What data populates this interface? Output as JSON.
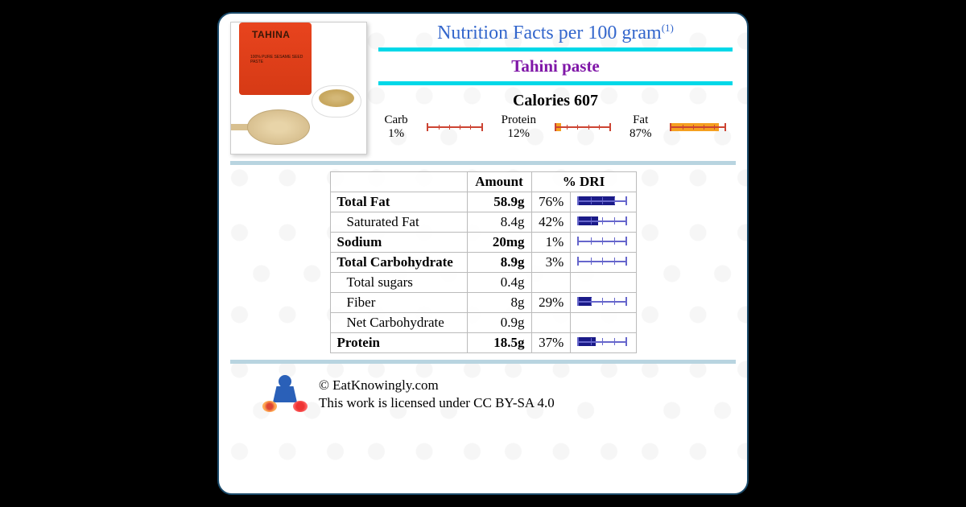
{
  "header": {
    "title_prefix": "Nutrition Facts per 100 gram",
    "title_superscript": "(1)",
    "food_name": "Tahini paste",
    "calories_label": "Calories",
    "calories_value": "607",
    "product_label": "TAHINA",
    "product_sub": "100% PURE SESAME SEED PASTE"
  },
  "macros": [
    {
      "label": "Carb",
      "percent": "1%",
      "fill_pct": 1
    },
    {
      "label": "Protein",
      "percent": "12%",
      "fill_pct": 12
    },
    {
      "label": "Fat",
      "percent": "87%",
      "fill_pct": 87
    }
  ],
  "macro_bar": {
    "scale_color": "#cc4433",
    "fill_color": "#f5a020",
    "tick_positions_pct": [
      20,
      40,
      60,
      80
    ]
  },
  "table": {
    "headers": {
      "amount": "Amount",
      "dri": "% DRI"
    },
    "rows": [
      {
        "label": "Total Fat",
        "bold": true,
        "indent": false,
        "amount": "58.9g",
        "dri": "76%",
        "bar_pct": 76
      },
      {
        "label": "Saturated Fat",
        "bold": false,
        "indent": true,
        "amount": "8.4g",
        "dri": "42%",
        "bar_pct": 42
      },
      {
        "label": "Sodium",
        "bold": true,
        "indent": false,
        "amount": "20mg",
        "dri": "1%",
        "bar_pct": 1
      },
      {
        "label": "Total Carbohydrate",
        "bold": true,
        "indent": false,
        "amount": "8.9g",
        "dri": "3%",
        "bar_pct": 3
      },
      {
        "label": "Total sugars",
        "bold": false,
        "indent": true,
        "amount": "0.4g",
        "dri": "",
        "bar_pct": null
      },
      {
        "label": "Fiber",
        "bold": false,
        "indent": true,
        "amount": "8g",
        "dri": "29%",
        "bar_pct": 29
      },
      {
        "label": "Net Carbohydrate",
        "bold": false,
        "indent": true,
        "amount": "0.9g",
        "dri": "",
        "bar_pct": null
      },
      {
        "label": "Protein",
        "bold": true,
        "indent": false,
        "amount": "18.5g",
        "dri": "37%",
        "bar_pct": 37
      }
    ]
  },
  "dri_bar": {
    "scale_color": "#6666cc",
    "fill_color": "#1a1a88",
    "tick_positions_pct": [
      25,
      50,
      75
    ]
  },
  "footer": {
    "copyright": "© EatKnowingly.com",
    "license": "This work is licensed under CC BY-SA 4.0"
  },
  "colors": {
    "card_border": "#1a4a6a",
    "title": "#3366cc",
    "food_name": "#8017a8",
    "teal_divider": "#00d8e8",
    "section_divider": "#b8d4e0",
    "table_border": "#bbbbbb"
  }
}
